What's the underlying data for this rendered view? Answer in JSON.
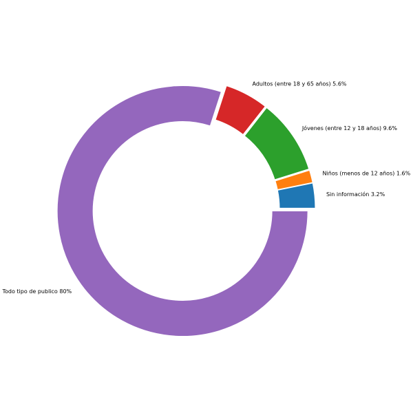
{
  "chart_data": {
    "type": "pie",
    "variant": "donut",
    "title": "",
    "grid": false,
    "legend": "none",
    "categories": [
      "Sin información",
      "Niños (menos de 12 años)",
      "Jóvenes (entre 12 y 18 años)",
      "Adultos (entre 18 y 65 años)",
      "Todo tipo de publico"
    ],
    "values": [
      3.2,
      1.6,
      9.6,
      5.6,
      80
    ],
    "labels": [
      "Sin información 3.2%",
      "Niños (menos de 12 años) 1.6%",
      "Jóvenes (entre 12 y 18 años) 9.6%",
      "Adultos (entre 18 y 65 años) 5.6%",
      "Todo tipo de publico 80%"
    ],
    "colors": [
      "#1f77b4",
      "#ff7f0e",
      "#2ca02c",
      "#d62728",
      "#9467bd"
    ]
  }
}
